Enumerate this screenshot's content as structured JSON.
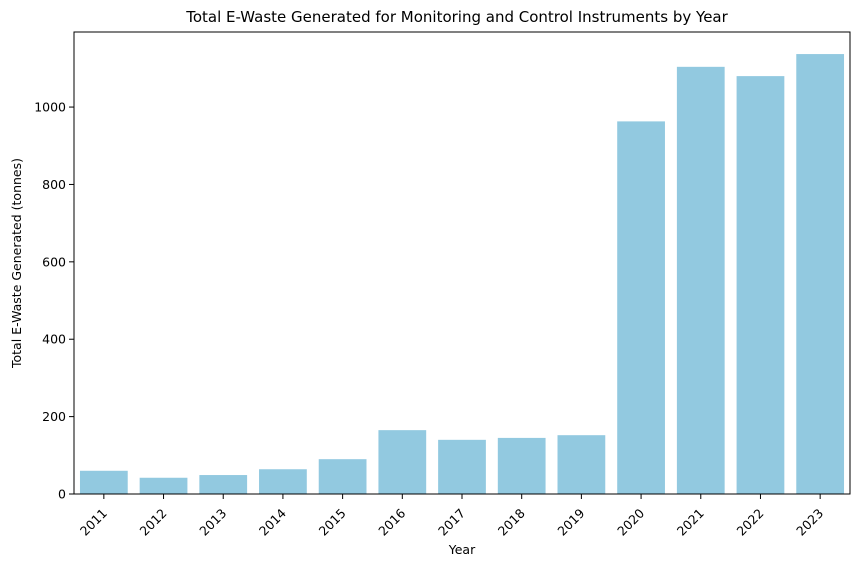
{
  "chart_data": {
    "type": "bar",
    "title": "Total E-Waste Generated for Monitoring and Control Instruments by Year",
    "xlabel": "Year",
    "ylabel": "Total E-Waste Generated (tonnes)",
    "categories": [
      "2011",
      "2012",
      "2013",
      "2014",
      "2015",
      "2016",
      "2017",
      "2018",
      "2019",
      "2020",
      "2021",
      "2022",
      "2023"
    ],
    "values": [
      60,
      42,
      49,
      64,
      90,
      165,
      140,
      145,
      152,
      963,
      1104,
      1080,
      1137
    ],
    "ylim": [
      0,
      1194
    ],
    "yticks": [
      0,
      200,
      400,
      600,
      800,
      1000
    ],
    "bar_color": "#92c9e0",
    "grid": false,
    "legend": "none"
  }
}
